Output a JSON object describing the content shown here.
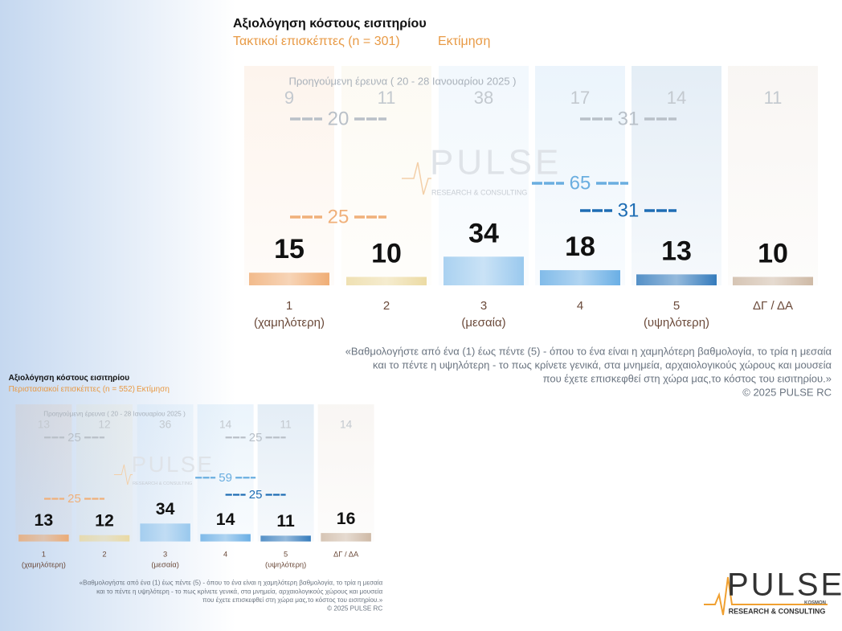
{
  "chart_data": [
    {
      "type": "bar",
      "title": "Αξιολόγηση κόστους εισιτηρίου",
      "subtitle": "Τακτικοί επισκέπτες  (n = 301)",
      "subtitle_note": "Εκτίμηση",
      "previous_label": "Προηγούμενη έρευνα ( 20 - 28 Ιανουαρίου 2025 )",
      "categories": [
        [
          "1",
          "(χαμηλότερη)"
        ],
        [
          "2"
        ],
        [
          "3",
          "(μεσαία)"
        ],
        [
          "4"
        ],
        [
          "5",
          "(υψηλότερη)"
        ],
        [
          "ΔΓ / ΔΑ"
        ]
      ],
      "colors": [
        "#eea567",
        "#ead79a",
        "#8fc3ec",
        "#5aa6e2",
        "#1f6db5",
        "#c9b29c"
      ],
      "values": [
        15,
        10,
        34,
        18,
        13,
        10
      ],
      "previous_values": [
        9,
        11,
        38,
        17,
        14,
        11
      ],
      "previous_totals": [
        {
          "value": 20,
          "color": "#b9c0c8"
        },
        {
          "value": 31,
          "color": "#b9c0c8"
        }
      ],
      "current_totals": [
        {
          "value": 25,
          "color": "#f0b07a"
        },
        {
          "value": 65,
          "color": "#6aaee0"
        },
        {
          "value": 31,
          "color": "#1e6db4"
        }
      ],
      "note": [
        "«Βαθμολογήστε από ένα (1) έως πέντε (5) - όπου το ένα είναι η χαμηλότερη βαθμολογία, το τρία η μεσαία",
        "και το πέντε η υψηλότερη - το πως κρίνετε γενικά, στα μνημεία, αρχαιολογικούς χώρους και μουσεία",
        "που έχετε επισκεφθεί στη χώρα μας,το κόστος του εισιτηρίου.»"
      ],
      "copyright": "©  2025  PULSE RC"
    },
    {
      "type": "bar",
      "title": "Αξιολόγηση κόστους εισιτηρίου",
      "subtitle": "Περιστασιακοί επισκέπτες  (n = 552)",
      "subtitle_note": "Εκτίμηση",
      "previous_label": "Προηγούμενη έρευνα ( 20 - 28 Ιανουαρίου 2025 )",
      "categories": [
        [
          "1",
          "(χαμηλότερη)"
        ],
        [
          "2"
        ],
        [
          "3",
          "(μεσαία)"
        ],
        [
          "4"
        ],
        [
          "5",
          "(υψηλότερη)"
        ],
        [
          "ΔΓ / ΔΑ"
        ]
      ],
      "colors": [
        "#eea567",
        "#ead79a",
        "#8fc3ec",
        "#5aa6e2",
        "#1f6db5",
        "#c9b29c"
      ],
      "values": [
        13,
        12,
        34,
        14,
        11,
        16
      ],
      "previous_values": [
        13,
        12,
        36,
        14,
        11,
        14
      ],
      "previous_totals": [
        {
          "value": 25,
          "color": "#b9c0c8"
        },
        {
          "value": 25,
          "color": "#b9c0c8"
        }
      ],
      "current_totals": [
        {
          "value": 25,
          "color": "#f0b07a"
        },
        {
          "value": 59,
          "color": "#6aaee0"
        },
        {
          "value": 25,
          "color": "#1e6db4"
        }
      ],
      "note": [
        "«Βαθμολογήστε από ένα (1) έως πέντε (5) - όπου το ένα είναι η χαμηλότερη βαθμολογία, το τρία η μεσαία",
        "και το πέντε η υψηλότερη - το πως κρίνετε γενικά, στα μνημεία, αρχαιολογικούς χώρους και μουσεία",
        "που έχετε επισκεφθεί στη χώρα μας,το κόστος του εισιτηρίου.»"
      ],
      "copyright": "©  2025  PULSE RC"
    }
  ],
  "logo": {
    "name": "PULSE",
    "tagline": "RESEARCH & CONSULTING",
    "sub": "KOSMON"
  }
}
